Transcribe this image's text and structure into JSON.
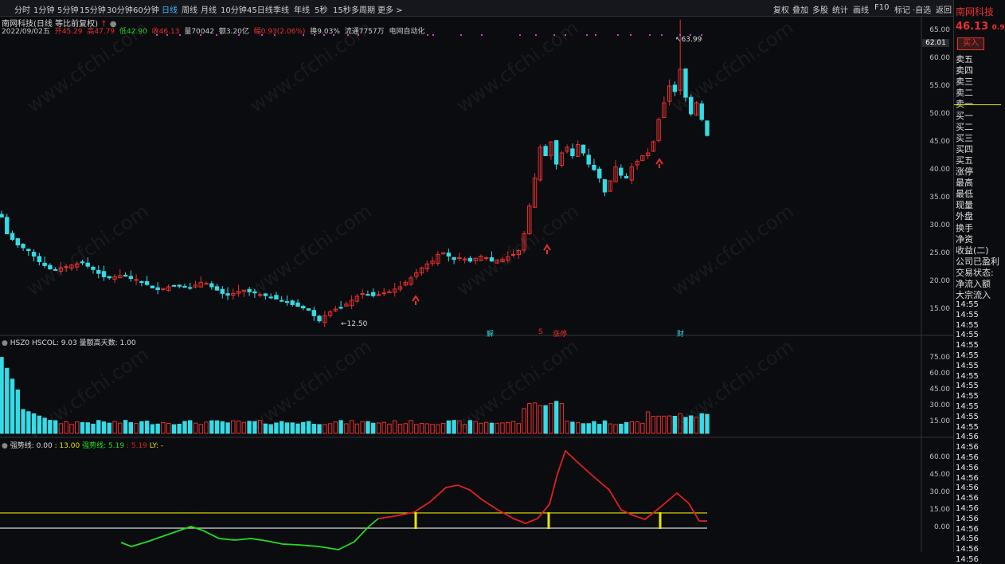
{
  "toolbar": {
    "periods": [
      "分时",
      "1分钟",
      "5分钟",
      "15分钟",
      "30分钟",
      "60分钟",
      "日线",
      "周线",
      "月线",
      "10分钟",
      "45日线",
      "季线",
      "年线",
      "5秒",
      "15秒",
      "多周期",
      "更多 >"
    ],
    "active_period": "日线",
    "right_tools": [
      "复权",
      "叠加",
      "多股",
      "统计",
      "画线",
      "F10",
      "标记",
      "·自选",
      "返回"
    ]
  },
  "title": "南网科技(日线 等比前复权)",
  "ohlc": {
    "date": "2022/09/02五",
    "open": "开45.29",
    "high": "高47.79",
    "low": "低42.90",
    "close": "收46.13",
    "volume": "量70042",
    "amount": "额3.20亿",
    "change": "幅0.93(2.06%)",
    "turnover": "换9.03%",
    "float": "流通7757万",
    "concept": "电网自动化"
  },
  "main_axis": {
    "ticks": [
      "65.00",
      "60.00",
      "55.00",
      "50.00",
      "45.00",
      "40.00",
      "35.00",
      "30.00",
      "25.00",
      "20.00",
      "15.00"
    ],
    "cursor_value": "62.01"
  },
  "annotations": {
    "high": "63.99",
    "low": "12.50",
    "event_jie": "解",
    "event_s": "S",
    "event_zhangting": "涨停",
    "event_cai": "财"
  },
  "vol_panel": {
    "header": "HSZ0 HSCOL: 9.03  量额高天数: 1.00",
    "ticks": [
      "75.00",
      "60.00",
      "45.00",
      "30.00",
      "15.00"
    ]
  },
  "ind_panel": {
    "label_name": "强势线",
    "label_v1": ": 0.00",
    "label_v2": ": 13.00",
    "label_name2": "强势线: 5.19",
    "label_v3": ": 5.19",
    "label_ly": "LY: -",
    "ticks": [
      "60.00",
      "45.00",
      "30.00",
      "15.00",
      "0.00"
    ]
  },
  "right_panel": {
    "stock": "南网科技",
    "price": "46.13",
    "pct": "0.9",
    "buy_btn": "买入",
    "levels": [
      "卖五",
      "卖四",
      "卖三",
      "卖二",
      "卖一",
      "买一",
      "买二",
      "买三",
      "买四",
      "买五",
      "涨停",
      "最高",
      "最低",
      "现量",
      "外盘",
      "换手",
      "净资",
      "收益(二)",
      "公司已盈利",
      "交易状态:",
      "净流入额",
      "大宗流入"
    ],
    "times": [
      "14:55",
      "14:55",
      "14:55",
      "14:55",
      "14:55",
      "14:55",
      "14:55",
      "14:55",
      "14:55",
      "14:55",
      "14:55",
      "14:55",
      "14:55",
      "14:56",
      "14:56",
      "14:56",
      "14:56",
      "14:56",
      "14:56",
      "14:56",
      "14:56",
      "14:56",
      "14:56",
      "14:56",
      "14:56",
      "14:56"
    ]
  },
  "watermark": "www.cfchi.com",
  "colors": {
    "up": "#e8302f",
    "down": "#33dce6",
    "line_yellow": "#e5e600",
    "line_green": "#22dd22",
    "line_red": "#e02020",
    "accent": "#3fb8ff"
  },
  "chart_data": {
    "type": "candlestick",
    "price_range": [
      12.5,
      63.99
    ],
    "closes": [
      31.5,
      28.5,
      27.5,
      26.5,
      26.0,
      25.5,
      24.5,
      23.5,
      22.8,
      22.2,
      22.0,
      22.4,
      22.6,
      22.9,
      23.1,
      23.3,
      22.7,
      22.1,
      21.4,
      20.8,
      20.6,
      20.8,
      21.0,
      20.9,
      20.5,
      20.3,
      19.8,
      19.4,
      18.8,
      18.5,
      18.7,
      19.0,
      19.2,
      19.1,
      18.9,
      18.8,
      19.3,
      19.8,
      19.6,
      19.0,
      18.4,
      17.8,
      17.5,
      17.8,
      18.2,
      18.4,
      18.1,
      17.9,
      17.6,
      17.4,
      17.1,
      16.8,
      16.5,
      16.2,
      15.8,
      15.5,
      15.2,
      14.8,
      13.8,
      12.9,
      13.8,
      14.5,
      15.0,
      15.3,
      15.9,
      16.6,
      17.3,
      17.8,
      17.6,
      17.4,
      17.6,
      17.9,
      18.1,
      18.6,
      19.0,
      19.8,
      20.6,
      21.5,
      22.4,
      23.1,
      23.6,
      24.8,
      25.1,
      24.5,
      23.9,
      24.2,
      24.0,
      23.6,
      24.1,
      24.5,
      24.2,
      23.6,
      23.8,
      23.9,
      24.4,
      24.8,
      25.5,
      28.5,
      33.5,
      38.5,
      44.0,
      42.5,
      45.0,
      41.0,
      43.0,
      44.0,
      42.5,
      44.5,
      43.0,
      41.0,
      40.0,
      38.5,
      36.0,
      38.0,
      40.5,
      39.0,
      38.5,
      40.5,
      41.5,
      42.5,
      43.0,
      45.0,
      49.0,
      52.0,
      55.0,
      54.0,
      58.0,
      53.0,
      50.0,
      52.0,
      49.0,
      46.13
    ],
    "ma_yellow_level": 13.0,
    "indicator_red_peak": 65.0
  }
}
